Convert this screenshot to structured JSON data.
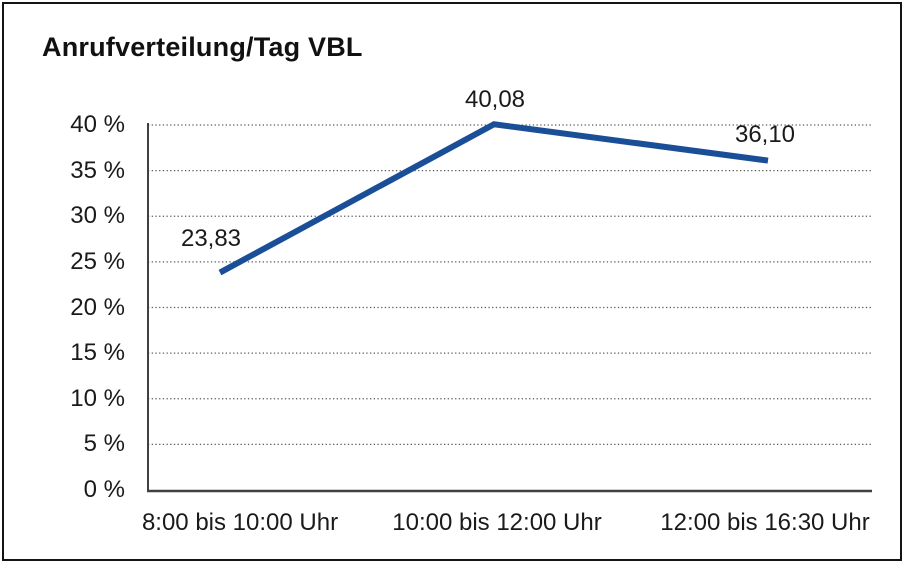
{
  "chart": {
    "title": "Anrufverteilung/Tag VBL"
  },
  "chart_data": {
    "type": "line",
    "title": "Anrufverteilung/Tag VBL",
    "categories": [
      "8:00 bis 10:00 Uhr",
      "10:00 bis 12:00 Uhr",
      "12:00 bis 16:30 Uhr"
    ],
    "series": [
      {
        "name": "Anrufverteilung/Tag VBL",
        "values": [
          23.83,
          40.08,
          36.1
        ],
        "point_labels": [
          "23,83",
          "40,08",
          "36,10"
        ]
      }
    ],
    "xlabel": "",
    "ylabel": "",
    "unit": "%",
    "ylim": [
      0,
      40
    ],
    "y_ticks": [
      0,
      5,
      10,
      15,
      20,
      25,
      30,
      35,
      40
    ],
    "y_tick_labels": [
      "0 %",
      "5 %",
      "10 %",
      "15 %",
      "20 %",
      "25 %",
      "30 %",
      "35 %",
      "40 %"
    ],
    "grid": "horizontal-dotted",
    "legend_position": "none",
    "colors": {
      "line": "#1a4f97",
      "axis": "#404040",
      "gridline": "#5a5a5a",
      "text": "#1a1a1a",
      "frame_border": "#141414",
      "background": "#ffffff"
    }
  }
}
